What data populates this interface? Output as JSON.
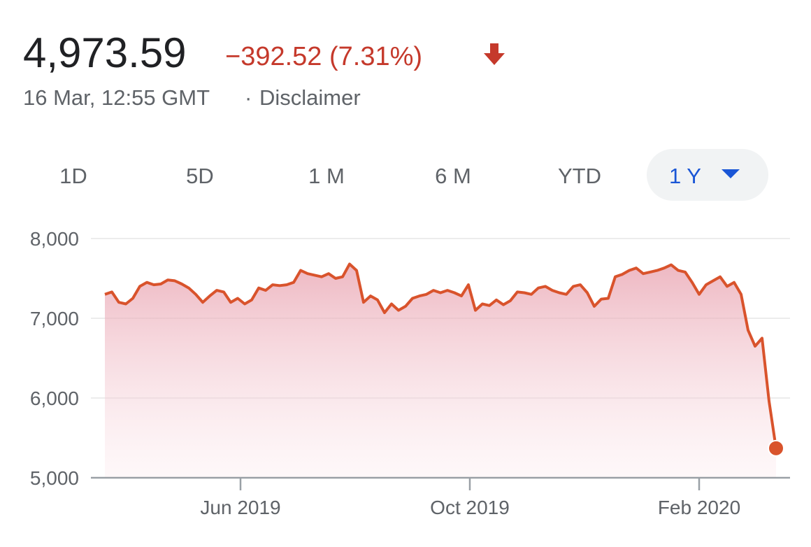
{
  "header": {
    "price": "4,973.59",
    "change": "−392.52 (7.31%)",
    "timestamp": "16 Mar, 12:55 GMT",
    "separator": "·",
    "disclaimer": "Disclaimer"
  },
  "tabs": [
    "1D",
    "5D",
    "1 M",
    "6 M",
    "YTD",
    "1 Y"
  ],
  "selected_tab": 5,
  "chart_data": {
    "type": "line",
    "color": "#d9532c",
    "values": [
      7300,
      7330,
      7200,
      7180,
      7250,
      7400,
      7450,
      7420,
      7430,
      7480,
      7470,
      7430,
      7380,
      7300,
      7200,
      7280,
      7350,
      7330,
      7200,
      7250,
      7180,
      7230,
      7380,
      7350,
      7420,
      7410,
      7420,
      7450,
      7600,
      7560,
      7540,
      7520,
      7560,
      7500,
      7520,
      7680,
      7600,
      7200,
      7280,
      7230,
      7070,
      7180,
      7100,
      7150,
      7250,
      7280,
      7300,
      7350,
      7320,
      7350,
      7320,
      7280,
      7420,
      7100,
      7180,
      7160,
      7230,
      7170,
      7220,
      7330,
      7320,
      7300,
      7380,
      7400,
      7350,
      7320,
      7300,
      7400,
      7420,
      7320,
      7150,
      7240,
      7250,
      7520,
      7550,
      7600,
      7630,
      7560,
      7580,
      7600,
      7630,
      7670,
      7600,
      7580,
      7450,
      7300,
      7420,
      7470,
      7520,
      7400,
      7450,
      7300,
      6850,
      6650,
      6750,
      5960,
      5370
    ],
    "xlim": [
      -2,
      98
    ],
    "xticks": [
      {
        "value": 19.4,
        "label": "Jun 2019"
      },
      {
        "value": 52.2,
        "label": "Oct 2019"
      },
      {
        "value": 85,
        "label": "Feb 2020"
      }
    ],
    "ylim": [
      5000,
      8000
    ],
    "yticks": [
      {
        "value": 5000,
        "label": "5,000"
      },
      {
        "value": 6000,
        "label": "6,000"
      },
      {
        "value": 7000,
        "label": "7,000"
      },
      {
        "value": 8000,
        "label": "8,000"
      }
    ],
    "grid": true
  }
}
